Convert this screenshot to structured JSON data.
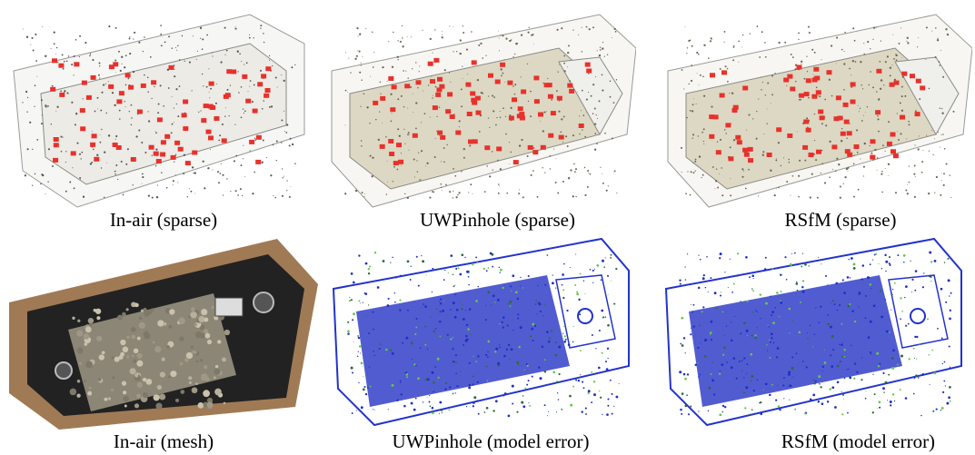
{
  "figure": {
    "panels": [
      {
        "id": "inair-sparse",
        "caption": "In-air (sparse)",
        "kind": "sparse-points"
      },
      {
        "id": "uwpinhole-sparse",
        "caption": "UWPinhole (sparse)",
        "kind": "sparse-points"
      },
      {
        "id": "rsfm-sparse",
        "caption": "RSfM (sparse)",
        "kind": "sparse-points"
      },
      {
        "id": "inair-mesh",
        "caption": "In-air (mesh)",
        "kind": "mesh"
      },
      {
        "id": "uwpinhole-error",
        "caption": "UWPinhole (model error)",
        "kind": "error-map"
      },
      {
        "id": "rsfm-error",
        "caption": "RSfM (model error)",
        "kind": "error-map"
      }
    ]
  }
}
